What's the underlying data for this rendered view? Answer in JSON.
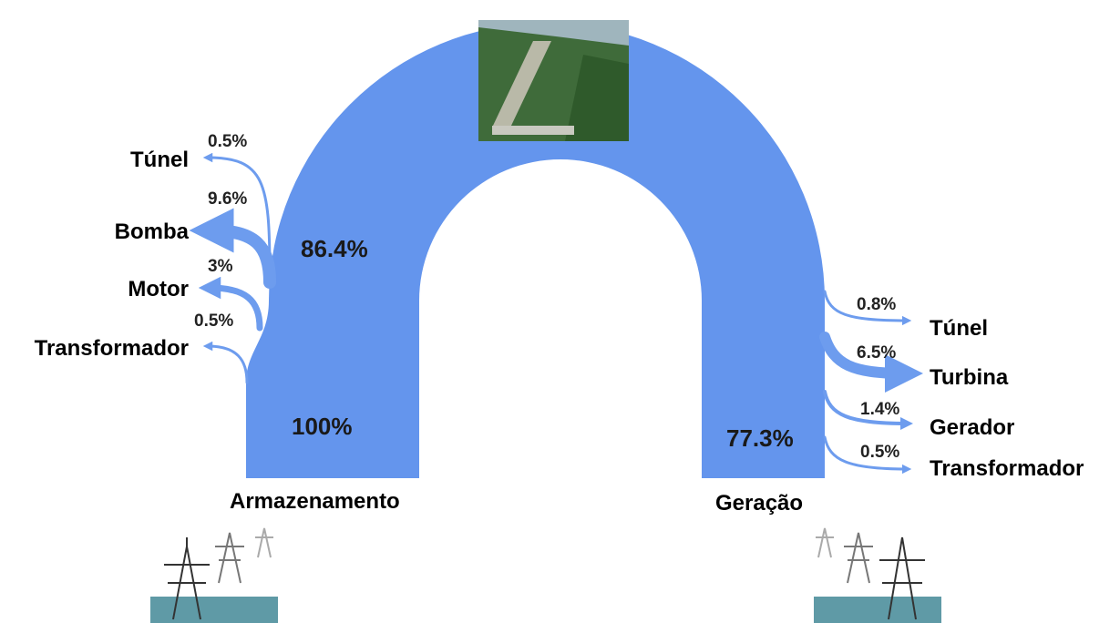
{
  "diagram": {
    "storage": {
      "label": "Armazenamento",
      "value": "100%"
    },
    "upper": {
      "value": "86.4%"
    },
    "generation": {
      "label": "Geração",
      "value": "77.3%"
    },
    "storage_losses": [
      {
        "label": "Túnel",
        "value": "0.5%"
      },
      {
        "label": "Bomba",
        "value": "9.6%"
      },
      {
        "label": "Motor",
        "value": "3%"
      },
      {
        "label": "Transformador",
        "value": "0.5%"
      }
    ],
    "generation_losses": [
      {
        "label": "Túnel",
        "value": "0.8%"
      },
      {
        "label": "Turbina",
        "value": "6.5%"
      },
      {
        "label": "Gerador",
        "value": "1.4%"
      },
      {
        "label": "Transformador",
        "value": "0.5%"
      }
    ]
  }
}
